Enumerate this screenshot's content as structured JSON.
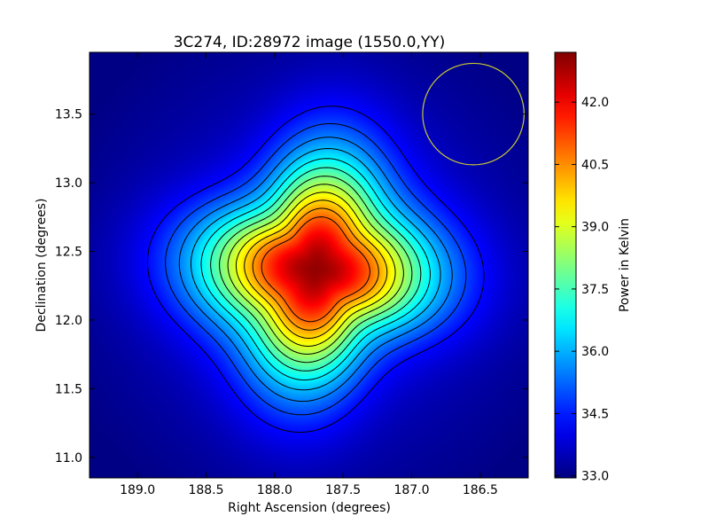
{
  "chart_data": {
    "type": "heatmap",
    "title": "3C274, ID:28972 image (1550.0,YY)",
    "xlabel": "Right Ascension (degrees)",
    "ylabel": "Declination (degrees)",
    "colorbar_label": "Power in Kelvin",
    "xlim": [
      189.35,
      186.15
    ],
    "ylim": [
      10.85,
      13.95
    ],
    "x_ticks": [
      189.0,
      188.5,
      188.0,
      187.5,
      187.0,
      186.5
    ],
    "x_tick_labels": [
      "189.0",
      "188.5",
      "188.0",
      "187.5",
      "187.0",
      "186.5"
    ],
    "y_ticks": [
      11.0,
      11.5,
      12.0,
      12.5,
      13.0,
      13.5
    ],
    "y_tick_labels": [
      "11.0",
      "11.5",
      "12.0",
      "12.5",
      "13.0",
      "13.5"
    ],
    "colorbar_range": [
      32.95,
      43.2
    ],
    "colorbar_ticks": [
      33.0,
      34.5,
      36.0,
      37.5,
      39.0,
      40.5,
      42.0
    ],
    "colorbar_tick_labels": [
      "33.0",
      "34.5",
      "36.0",
      "37.5",
      "39.0",
      "40.5",
      "42.0"
    ],
    "colormap": "jet",
    "peak": {
      "ra": 187.7,
      "dec": 12.37,
      "value": 43.0
    },
    "background_value": 34.0,
    "contour_levels": [
      34.3,
      34.9,
      35.5,
      36.1,
      36.7,
      37.3,
      37.9,
      38.5,
      39.1,
      39.7,
      40.3,
      40.9
    ],
    "contour_color": "#000000",
    "beam_circle": {
      "ra": 186.55,
      "dec": 13.5,
      "radius_deg": 0.37,
      "color": "#c8c832"
    }
  }
}
